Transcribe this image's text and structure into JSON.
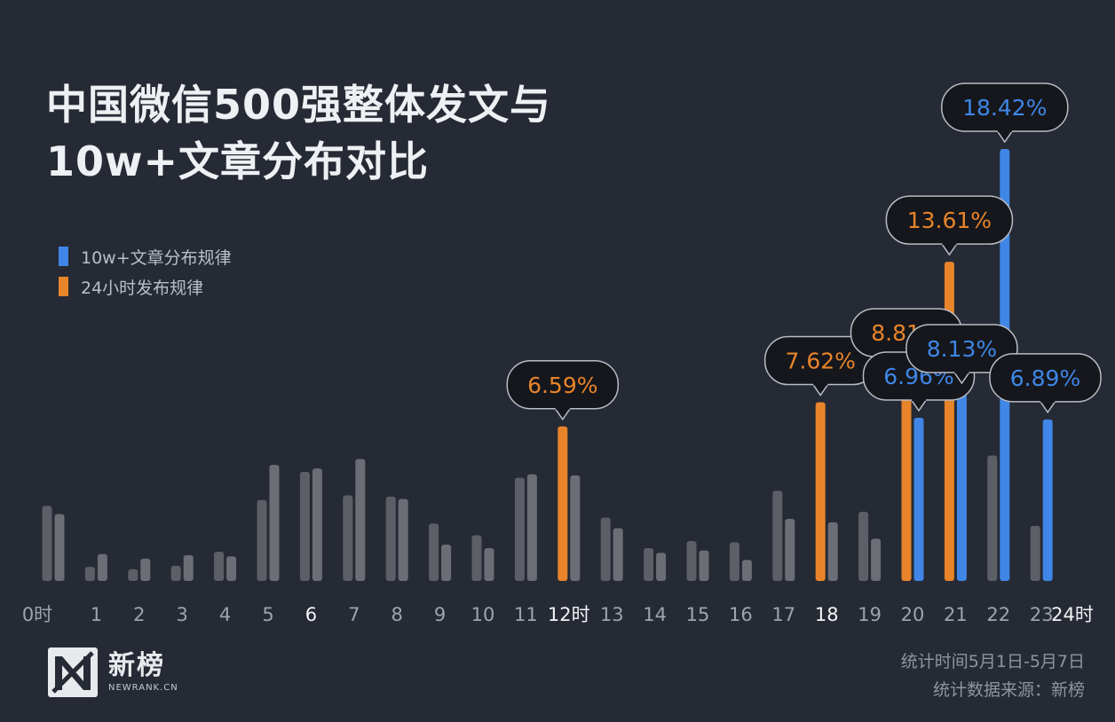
{
  "title_line1": "中国微信500强整体发文与",
  "title_line2": "10w+文章分布对比",
  "footer": {
    "period": "统计时间5月1日-5月7日",
    "source": "统计数据来源：新榜"
  },
  "logo": {
    "cn": "新榜",
    "en": "NEWRANK.CN",
    "icon": "newrank-n-logo-icon"
  },
  "colors": {
    "background": "#262a34",
    "grey_bar": "#5c5f66",
    "grey_bar_light": "#6b6e75",
    "orange": "#e8842a",
    "blue": "#3f86e6"
  },
  "chart_data": {
    "type": "bar",
    "categories": [
      "0时",
      "1",
      "2",
      "3",
      "4",
      "5",
      "6",
      "7",
      "8",
      "9",
      "10",
      "11",
      "12时",
      "13",
      "14",
      "15",
      "16",
      "17",
      "18",
      "19",
      "20",
      "21",
      "22",
      "23"
    ],
    "end_tick": "24时",
    "bold_ticks": [
      "6",
      "12时",
      "18",
      "24时"
    ],
    "series": [
      {
        "name": "10w+文章分布规律",
        "color": "#3f86e6",
        "values": [
          2.85,
          1.15,
          0.95,
          1.1,
          1.05,
          4.95,
          4.8,
          5.2,
          3.5,
          1.55,
          1.4,
          4.55,
          4.5,
          2.25,
          1.2,
          1.3,
          0.9,
          2.65,
          2.5,
          1.8,
          6.96,
          8.13,
          18.42,
          6.89
        ],
        "highlight": [
          20,
          21,
          22,
          23
        ]
      },
      {
        "name": "24小时发布规律",
        "color": "#e8842a",
        "values": [
          3.2,
          0.6,
          0.5,
          0.65,
          1.25,
          3.45,
          4.65,
          3.65,
          3.6,
          2.45,
          1.95,
          4.4,
          6.59,
          2.7,
          1.4,
          1.7,
          1.65,
          3.85,
          7.62,
          2.95,
          8.81,
          13.61,
          5.35,
          2.35
        ],
        "highlight": [
          12,
          18,
          20,
          21
        ]
      }
    ],
    "callouts": [
      {
        "label": "6.59%",
        "hour": 12,
        "series": "24小时发布规律"
      },
      {
        "label": "7.62%",
        "hour": 18,
        "series": "24小时发布规律"
      },
      {
        "label": "8.81%",
        "hour": 20,
        "series": "24小时发布规律"
      },
      {
        "label": "13.61%",
        "hour": 21,
        "series": "24小时发布规律"
      },
      {
        "label": "6.96%",
        "hour": 20,
        "series": "10w+文章分布规律"
      },
      {
        "label": "8.13%",
        "hour": 21,
        "series": "10w+文章分布规律"
      },
      {
        "label": "18.42%",
        "hour": 22,
        "series": "10w+文章分布规律"
      },
      {
        "label": "6.89%",
        "hour": 23,
        "series": "10w+文章分布规律"
      }
    ],
    "ylim": [
      0,
      20
    ],
    "legend_position": "top-left",
    "grid": false
  }
}
